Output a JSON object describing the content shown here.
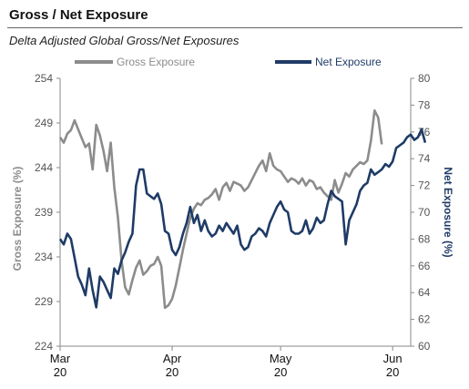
{
  "header": {
    "title": "Gross / Net Exposure",
    "subtitle": "Delta Adjusted Global Gross/Net Exposures"
  },
  "colors": {
    "gross": "#8c8c8c",
    "net": "#1f3b66",
    "axis": "#555555"
  },
  "chart_data": {
    "type": "line",
    "legend_position": "top",
    "grid": false,
    "x_range": [
      "2020-03-01",
      "2020-06-06"
    ],
    "x_ticks": [
      {
        "date": "2020-03-01",
        "line1": "Mar",
        "line2": "20"
      },
      {
        "date": "2020-04-01",
        "line1": "Apr",
        "line2": "20"
      },
      {
        "date": "2020-05-01",
        "line1": "May",
        "line2": "20"
      },
      {
        "date": "2020-06-01",
        "line1": "Jun",
        "line2": "20"
      }
    ],
    "y_left": {
      "label": "Gross Exposure (%)",
      "range": [
        224,
        254
      ],
      "ticks": [
        "224",
        "229",
        "234",
        "239",
        "244",
        "249",
        "254"
      ]
    },
    "y_right": {
      "label": "Net Exposure (%)",
      "range": [
        60,
        80
      ],
      "ticks": [
        "60",
        "62",
        "64",
        "66",
        "68",
        "70",
        "72",
        "74",
        "76",
        "78",
        "80"
      ]
    },
    "series": [
      {
        "name": "Gross Exposure",
        "axis": "left",
        "points": [
          [
            "2020-03-01",
            247.4
          ],
          [
            "2020-03-02",
            246.8
          ],
          [
            "2020-03-03",
            247.8
          ],
          [
            "2020-03-04",
            248.2
          ],
          [
            "2020-03-05",
            249.3
          ],
          [
            "2020-03-06",
            248.3
          ],
          [
            "2020-03-07",
            247.3
          ],
          [
            "2020-03-08",
            246.3
          ],
          [
            "2020-03-09",
            246.7
          ],
          [
            "2020-03-10",
            243.8
          ],
          [
            "2020-03-11",
            248.8
          ],
          [
            "2020-03-12",
            247.6
          ],
          [
            "2020-03-13",
            245.9
          ],
          [
            "2020-03-14",
            243.6
          ],
          [
            "2020-03-15",
            246.8
          ],
          [
            "2020-03-16",
            241.8
          ],
          [
            "2020-03-17",
            238.4
          ],
          [
            "2020-03-18",
            233.6
          ],
          [
            "2020-03-19",
            230.6
          ],
          [
            "2020-03-20",
            229.8
          ],
          [
            "2020-03-21",
            231.4
          ],
          [
            "2020-03-22",
            232.8
          ],
          [
            "2020-03-23",
            233.6
          ],
          [
            "2020-03-24",
            232.0
          ],
          [
            "2020-03-25",
            232.4
          ],
          [
            "2020-03-26",
            233.0
          ],
          [
            "2020-03-27",
            233.2
          ],
          [
            "2020-03-28",
            234.0
          ],
          [
            "2020-03-29",
            233.0
          ],
          [
            "2020-03-30",
            228.3
          ],
          [
            "2020-03-31",
            228.6
          ],
          [
            "2020-04-01",
            229.3
          ],
          [
            "2020-04-02",
            230.8
          ],
          [
            "2020-04-03",
            232.8
          ],
          [
            "2020-04-04",
            234.8
          ],
          [
            "2020-04-05",
            236.6
          ],
          [
            "2020-04-06",
            238.4
          ],
          [
            "2020-04-07",
            239.4
          ],
          [
            "2020-04-08",
            240.0
          ],
          [
            "2020-04-09",
            239.8
          ],
          [
            "2020-04-10",
            240.4
          ],
          [
            "2020-04-11",
            240.6
          ],
          [
            "2020-04-12",
            241.0
          ],
          [
            "2020-04-13",
            241.6
          ],
          [
            "2020-04-14",
            240.4
          ],
          [
            "2020-04-15",
            241.8
          ],
          [
            "2020-04-16",
            242.3
          ],
          [
            "2020-04-17",
            241.4
          ],
          [
            "2020-04-18",
            242.4
          ],
          [
            "2020-04-19",
            242.2
          ],
          [
            "2020-04-20",
            242.0
          ],
          [
            "2020-04-21",
            241.4
          ],
          [
            "2020-04-22",
            241.8
          ],
          [
            "2020-04-23",
            242.6
          ],
          [
            "2020-04-24",
            243.4
          ],
          [
            "2020-04-25",
            244.2
          ],
          [
            "2020-04-26",
            244.8
          ],
          [
            "2020-04-27",
            243.6
          ],
          [
            "2020-04-28",
            245.6
          ],
          [
            "2020-04-29",
            244.2
          ],
          [
            "2020-04-30",
            243.8
          ],
          [
            "2020-05-01",
            243.6
          ],
          [
            "2020-05-02",
            243.0
          ],
          [
            "2020-05-03",
            242.4
          ],
          [
            "2020-05-04",
            242.8
          ],
          [
            "2020-05-05",
            242.6
          ],
          [
            "2020-05-06",
            242.2
          ],
          [
            "2020-05-07",
            242.8
          ],
          [
            "2020-05-08",
            242.0
          ],
          [
            "2020-05-09",
            242.6
          ],
          [
            "2020-05-10",
            242.4
          ],
          [
            "2020-05-11",
            241.6
          ],
          [
            "2020-05-12",
            241.8
          ],
          [
            "2020-05-13",
            241.2
          ],
          [
            "2020-05-14",
            240.8
          ],
          [
            "2020-05-15",
            240.4
          ],
          [
            "2020-05-16",
            242.6
          ],
          [
            "2020-05-17",
            241.2
          ],
          [
            "2020-05-18",
            242.2
          ],
          [
            "2020-05-19",
            243.4
          ],
          [
            "2020-05-20",
            243.0
          ],
          [
            "2020-05-21",
            243.8
          ],
          [
            "2020-05-22",
            244.2
          ],
          [
            "2020-05-23",
            244.6
          ],
          [
            "2020-05-24",
            244.4
          ],
          [
            "2020-05-25",
            244.8
          ],
          [
            "2020-05-26",
            247.0
          ],
          [
            "2020-05-27",
            250.4
          ],
          [
            "2020-05-28",
            249.6
          ],
          [
            "2020-05-29",
            246.6
          ]
        ]
      },
      {
        "name": "Net Exposure",
        "axis": "right",
        "points": [
          [
            "2020-03-01",
            68.0
          ],
          [
            "2020-03-02",
            67.6
          ],
          [
            "2020-03-03",
            68.4
          ],
          [
            "2020-03-04",
            68.0
          ],
          [
            "2020-03-05",
            66.6
          ],
          [
            "2020-03-06",
            65.2
          ],
          [
            "2020-03-07",
            64.6
          ],
          [
            "2020-03-08",
            63.8
          ],
          [
            "2020-03-09",
            65.8
          ],
          [
            "2020-03-10",
            64.2
          ],
          [
            "2020-03-11",
            62.9
          ],
          [
            "2020-03-12",
            65.2
          ],
          [
            "2020-03-13",
            64.8
          ],
          [
            "2020-03-14",
            64.2
          ],
          [
            "2020-03-15",
            63.6
          ],
          [
            "2020-03-16",
            65.8
          ],
          [
            "2020-03-17",
            65.4
          ],
          [
            "2020-03-18",
            66.4
          ],
          [
            "2020-03-19",
            67.0
          ],
          [
            "2020-03-20",
            67.8
          ],
          [
            "2020-03-21",
            68.4
          ],
          [
            "2020-03-22",
            72.0
          ],
          [
            "2020-03-23",
            73.2
          ],
          [
            "2020-03-24",
            73.2
          ],
          [
            "2020-03-25",
            71.4
          ],
          [
            "2020-03-26",
            71.2
          ],
          [
            "2020-03-27",
            71.0
          ],
          [
            "2020-03-28",
            71.4
          ],
          [
            "2020-03-29",
            70.6
          ],
          [
            "2020-03-30",
            68.6
          ],
          [
            "2020-03-31",
            68.4
          ],
          [
            "2020-04-01",
            67.2
          ],
          [
            "2020-04-02",
            66.8
          ],
          [
            "2020-04-03",
            67.4
          ],
          [
            "2020-04-04",
            68.4
          ],
          [
            "2020-04-05",
            69.2
          ],
          [
            "2020-04-06",
            70.4
          ],
          [
            "2020-04-07",
            69.2
          ],
          [
            "2020-04-08",
            69.8
          ],
          [
            "2020-04-09",
            68.6
          ],
          [
            "2020-04-10",
            69.4
          ],
          [
            "2020-04-11",
            68.6
          ],
          [
            "2020-04-12",
            68.2
          ],
          [
            "2020-04-13",
            68.4
          ],
          [
            "2020-04-14",
            69.0
          ],
          [
            "2020-04-15",
            68.6
          ],
          [
            "2020-04-16",
            69.2
          ],
          [
            "2020-04-17",
            68.8
          ],
          [
            "2020-04-18",
            68.4
          ],
          [
            "2020-04-19",
            69.0
          ],
          [
            "2020-04-20",
            67.6
          ],
          [
            "2020-04-21",
            67.2
          ],
          [
            "2020-04-22",
            67.4
          ],
          [
            "2020-04-23",
            68.2
          ],
          [
            "2020-04-24",
            68.4
          ],
          [
            "2020-04-25",
            68.8
          ],
          [
            "2020-04-26",
            68.6
          ],
          [
            "2020-04-27",
            68.2
          ],
          [
            "2020-04-28",
            69.2
          ],
          [
            "2020-04-29",
            69.8
          ],
          [
            "2020-04-30",
            70.4
          ],
          [
            "2020-05-01",
            70.8
          ],
          [
            "2020-05-02",
            70.2
          ],
          [
            "2020-05-03",
            70.0
          ],
          [
            "2020-05-04",
            68.6
          ],
          [
            "2020-05-05",
            68.4
          ],
          [
            "2020-05-06",
            68.4
          ],
          [
            "2020-05-07",
            68.6
          ],
          [
            "2020-05-08",
            69.4
          ],
          [
            "2020-05-09",
            68.4
          ],
          [
            "2020-05-10",
            68.8
          ],
          [
            "2020-05-11",
            69.6
          ],
          [
            "2020-05-12",
            69.2
          ],
          [
            "2020-05-13",
            69.4
          ],
          [
            "2020-05-14",
            70.6
          ],
          [
            "2020-05-15",
            71.6
          ],
          [
            "2020-05-16",
            71.2
          ],
          [
            "2020-05-17",
            71.0
          ],
          [
            "2020-05-18",
            70.8
          ],
          [
            "2020-05-19",
            67.6
          ],
          [
            "2020-05-20",
            69.4
          ],
          [
            "2020-05-21",
            70.0
          ],
          [
            "2020-05-22",
            70.6
          ],
          [
            "2020-05-23",
            71.6
          ],
          [
            "2020-05-24",
            72.0
          ],
          [
            "2020-05-25",
            72.2
          ],
          [
            "2020-05-26",
            73.2
          ],
          [
            "2020-05-27",
            72.8
          ],
          [
            "2020-05-28",
            73.0
          ],
          [
            "2020-05-29",
            73.2
          ],
          [
            "2020-05-30",
            73.6
          ],
          [
            "2020-05-31",
            73.4
          ],
          [
            "2020-06-01",
            73.8
          ],
          [
            "2020-06-02",
            74.8
          ],
          [
            "2020-06-03",
            75.0
          ],
          [
            "2020-06-04",
            75.2
          ],
          [
            "2020-06-05",
            75.6
          ],
          [
            "2020-06-06",
            75.8
          ],
          [
            "2020-06-07",
            75.4
          ],
          [
            "2020-06-08",
            75.6
          ],
          [
            "2020-06-09",
            76.2
          ],
          [
            "2020-06-10",
            75.2
          ]
        ]
      }
    ]
  }
}
